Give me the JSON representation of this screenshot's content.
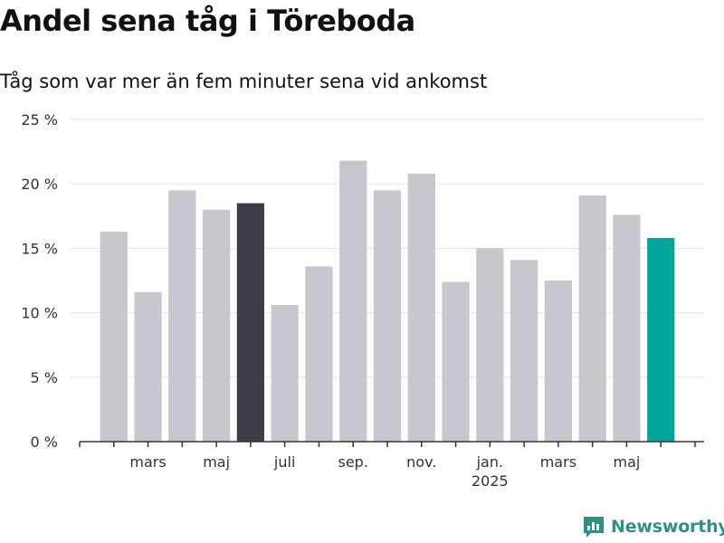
{
  "header": {
    "title": "Andel sena tåg i Töreboda",
    "subtitle": "Tåg som var mer än fem minuter sena vid ankomst"
  },
  "brand": {
    "name": "Newsworthy",
    "icon": "newsworthy-logo-icon"
  },
  "colors": {
    "bar": "#c8c7cd",
    "highlight": "#3f3d47",
    "latest": "#00a499",
    "grid": "#e3e3e3",
    "axis": "#333333"
  },
  "chart_data": {
    "type": "bar",
    "title": "Andel sena tåg i Töreboda",
    "subtitle": "Tåg som var mer än fem minuter sena vid ankomst",
    "ylim": [
      0,
      25
    ],
    "yticks": [
      0,
      5,
      10,
      15,
      20,
      25
    ],
    "ytick_labels": [
      "0 %",
      "5 %",
      "10 %",
      "15 %",
      "20 %",
      "25 %"
    ],
    "grid": true,
    "categories": [
      "2024-02",
      "2024-03",
      "2024-04",
      "2024-05",
      "2024-06",
      "2024-07",
      "2024-08",
      "2024-09",
      "2024-10",
      "2024-11",
      "2024-12",
      "2025-01",
      "2025-02",
      "2025-03",
      "2025-04",
      "2025-05",
      "2025-06"
    ],
    "values": [
      16.3,
      11.6,
      19.5,
      18.0,
      18.5,
      10.6,
      13.6,
      21.8,
      19.5,
      20.8,
      12.4,
      15.0,
      14.1,
      12.5,
      19.1,
      17.6,
      15.8
    ],
    "highlight_index": 4,
    "latest_index": 16,
    "xticks": [
      {
        "label": "mars",
        "index": 1
      },
      {
        "label": "maj",
        "index": 3
      },
      {
        "label": "juli",
        "index": 5
      },
      {
        "label": "sep.",
        "index": 7
      },
      {
        "label": "nov.",
        "index": 9
      },
      {
        "label": "jan.",
        "index": 11,
        "sublabel": "2025"
      },
      {
        "label": "mars",
        "index": 13
      },
      {
        "label": "maj",
        "index": 15
      }
    ]
  }
}
